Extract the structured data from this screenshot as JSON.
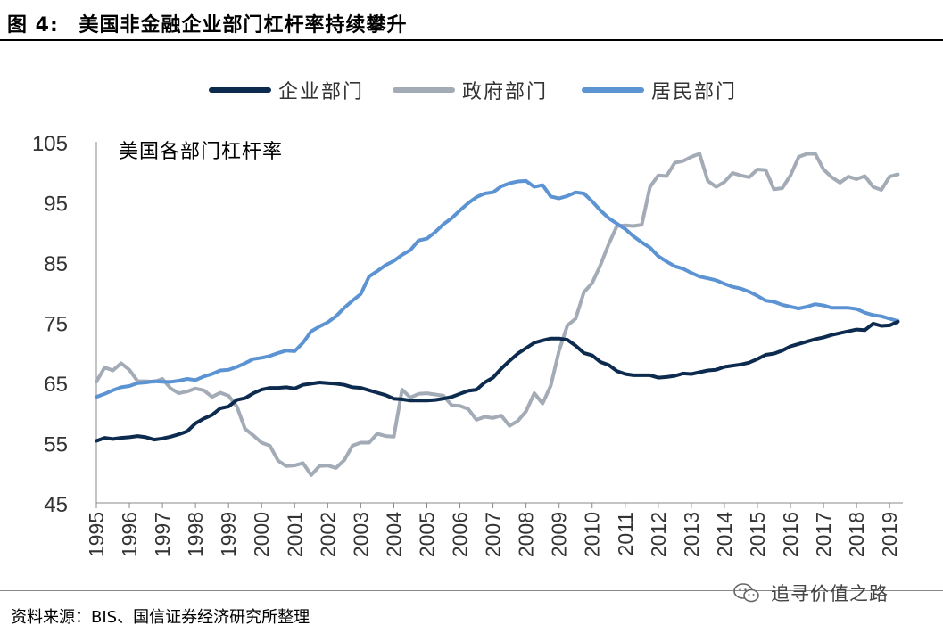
{
  "header": {
    "figure_label": "图 4:",
    "title": "美国非金融企业部门杠杆率持续攀升"
  },
  "footer": {
    "source": "资料来源：BIS、国信证券经济研究所整理",
    "watermark": "追寻价值之路"
  },
  "colors": {
    "enterprise": "#0d2a4f",
    "government": "#a3abb6",
    "household": "#5b93d3"
  },
  "chart_data": {
    "type": "line",
    "annotation": "美国各部门杠杆率",
    "ylim": [
      45,
      105
    ],
    "yticks": [
      45,
      55,
      65,
      75,
      85,
      95,
      105
    ],
    "xlim": [
      1995,
      2019.4
    ],
    "xticks": [
      1995,
      1996,
      1997,
      1998,
      1999,
      2000,
      2001,
      2002,
      2003,
      2004,
      2005,
      2006,
      2007,
      2008,
      2009,
      2010,
      2011,
      2012,
      2013,
      2014,
      2015,
      2016,
      2017,
      2018,
      2019
    ],
    "grid": false,
    "legend_position": "top",
    "series": [
      {
        "name": "企业部门",
        "color": "#0d2a4f",
        "x": [
          1995.0,
          1995.25,
          1995.5,
          1995.75,
          1996.0,
          1996.25,
          1996.5,
          1996.75,
          1997.0,
          1997.25,
          1997.5,
          1997.75,
          1998.0,
          1998.25,
          1998.5,
          1998.75,
          1999.0,
          1999.25,
          1999.5,
          1999.75,
          2000.0,
          2000.25,
          2000.5,
          2000.75,
          2001.0,
          2001.25,
          2001.5,
          2001.75,
          2002.0,
          2002.25,
          2002.5,
          2002.75,
          2003.0,
          2003.25,
          2003.5,
          2003.75,
          2004.0,
          2004.25,
          2004.5,
          2004.75,
          2005.0,
          2005.25,
          2005.5,
          2005.75,
          2006.0,
          2006.25,
          2006.5,
          2006.75,
          2007.0,
          2007.25,
          2007.5,
          2007.75,
          2008.0,
          2008.25,
          2008.5,
          2008.75,
          2009.0,
          2009.25,
          2009.5,
          2009.75,
          2010.0,
          2010.25,
          2010.5,
          2010.75,
          2011.0,
          2011.25,
          2011.5,
          2011.75,
          2012.0,
          2012.25,
          2012.5,
          2012.75,
          2013.0,
          2013.25,
          2013.5,
          2013.75,
          2014.0,
          2014.25,
          2014.5,
          2014.75,
          2015.0,
          2015.25,
          2015.5,
          2015.75,
          2016.0,
          2016.25,
          2016.5,
          2016.75,
          2017.0,
          2017.25,
          2017.5,
          2017.75,
          2018.0,
          2018.25,
          2018.5,
          2018.75,
          2019.0,
          2019.25
        ],
        "y": [
          55.3,
          55.8,
          55.6,
          55.8,
          55.9,
          56.1,
          55.9,
          55.5,
          55.7,
          56.0,
          56.4,
          56.9,
          58.2,
          59.0,
          59.6,
          60.7,
          61.0,
          62.1,
          62.4,
          63.2,
          63.8,
          64.1,
          64.1,
          64.2,
          64.0,
          64.6,
          64.8,
          65.0,
          64.9,
          64.8,
          64.6,
          64.2,
          64.1,
          63.7,
          63.3,
          62.9,
          62.3,
          62.2,
          62.0,
          62.0,
          62.0,
          62.1,
          62.3,
          62.6,
          63.1,
          63.6,
          63.8,
          65.0,
          65.8,
          67.3,
          68.6,
          69.8,
          70.7,
          71.6,
          72.0,
          72.3,
          72.3,
          72.1,
          71.1,
          69.9,
          69.5,
          68.4,
          67.9,
          66.9,
          66.4,
          66.2,
          66.2,
          66.2,
          65.8,
          65.9,
          66.1,
          66.5,
          66.4,
          66.7,
          67.0,
          67.1,
          67.6,
          67.8,
          68.0,
          68.3,
          68.9,
          69.6,
          69.8,
          70.3,
          71.0,
          71.4,
          71.8,
          72.2,
          72.5,
          72.9,
          73.2,
          73.5,
          73.8,
          73.7,
          74.8,
          74.4,
          74.5,
          75.1
        ]
      },
      {
        "name": "政府部门",
        "color": "#a3abb6",
        "x": [
          1995.0,
          1995.25,
          1995.5,
          1995.75,
          1996.0,
          1996.25,
          1996.5,
          1996.75,
          1997.0,
          1997.25,
          1997.5,
          1997.75,
          1998.0,
          1998.25,
          1998.5,
          1998.75,
          1999.0,
          1999.25,
          1999.5,
          1999.75,
          2000.0,
          2000.25,
          2000.5,
          2000.75,
          2001.0,
          2001.25,
          2001.5,
          2001.75,
          2002.0,
          2002.25,
          2002.5,
          2002.75,
          2003.0,
          2003.25,
          2003.5,
          2003.75,
          2004.0,
          2004.25,
          2004.5,
          2004.75,
          2005.0,
          2005.25,
          2005.5,
          2005.75,
          2006.0,
          2006.25,
          2006.5,
          2006.75,
          2007.0,
          2007.25,
          2007.5,
          2007.75,
          2008.0,
          2008.25,
          2008.5,
          2008.75,
          2009.0,
          2009.25,
          2009.5,
          2009.75,
          2010.0,
          2010.25,
          2010.5,
          2010.75,
          2011.0,
          2011.25,
          2011.5,
          2011.75,
          2012.0,
          2012.25,
          2012.5,
          2012.75,
          2013.0,
          2013.25,
          2013.5,
          2013.75,
          2014.0,
          2014.25,
          2014.5,
          2014.75,
          2015.0,
          2015.25,
          2015.5,
          2015.75,
          2016.0,
          2016.25,
          2016.5,
          2016.75,
          2017.0,
          2017.25,
          2017.5,
          2017.75,
          2018.0,
          2018.25,
          2018.5,
          2018.75,
          2019.0,
          2019.25
        ],
        "y": [
          65.1,
          67.5,
          67.0,
          68.2,
          67.1,
          65.2,
          65.2,
          65.1,
          65.6,
          64.0,
          63.2,
          63.5,
          64.0,
          63.7,
          62.6,
          63.3,
          62.8,
          61.0,
          57.3,
          56.2,
          55.0,
          54.5,
          52.0,
          51.1,
          51.2,
          51.6,
          49.6,
          51.1,
          51.2,
          50.8,
          52.1,
          54.5,
          55.0,
          55.0,
          56.5,
          56.1,
          56.0,
          63.8,
          62.5,
          63.1,
          63.2,
          63.0,
          62.8,
          61.2,
          61.1,
          60.6,
          58.8,
          59.3,
          59.1,
          59.5,
          57.8,
          58.6,
          60.2,
          63.2,
          61.5,
          64.5,
          70.3,
          74.5,
          75.6,
          80.0,
          81.5,
          84.5,
          88.0,
          91.0,
          91.1,
          91.0,
          91.2,
          97.5,
          99.4,
          99.3,
          101.5,
          101.8,
          102.5,
          103.0,
          98.5,
          97.5,
          98.3,
          99.8,
          99.4,
          99.1,
          100.4,
          100.3,
          97.1,
          97.3,
          99.4,
          102.5,
          103.0,
          103.0,
          100.4,
          99.1,
          98.2,
          99.2,
          98.8,
          99.3,
          97.5,
          97.0,
          99.2,
          99.6
        ]
      },
      {
        "name": "居民部门",
        "color": "#5b93d3",
        "x": [
          1995.0,
          1995.25,
          1995.5,
          1995.75,
          1996.0,
          1996.25,
          1996.5,
          1996.75,
          1997.0,
          1997.25,
          1997.5,
          1997.75,
          1998.0,
          1998.25,
          1998.5,
          1998.75,
          1999.0,
          1999.25,
          1999.5,
          1999.75,
          2000.0,
          2000.25,
          2000.5,
          2000.75,
          2001.0,
          2001.25,
          2001.5,
          2001.75,
          2002.0,
          2002.25,
          2002.5,
          2002.75,
          2003.0,
          2003.25,
          2003.5,
          2003.75,
          2004.0,
          2004.25,
          2004.5,
          2004.75,
          2005.0,
          2005.25,
          2005.5,
          2005.75,
          2006.0,
          2006.25,
          2006.5,
          2006.75,
          2007.0,
          2007.25,
          2007.5,
          2007.75,
          2008.0,
          2008.25,
          2008.5,
          2008.75,
          2009.0,
          2009.25,
          2009.5,
          2009.75,
          2010.0,
          2010.25,
          2010.5,
          2010.75,
          2011.0,
          2011.25,
          2011.5,
          2011.75,
          2012.0,
          2012.25,
          2012.5,
          2012.75,
          2013.0,
          2013.25,
          2013.5,
          2013.75,
          2014.0,
          2014.25,
          2014.5,
          2014.75,
          2015.0,
          2015.25,
          2015.5,
          2015.75,
          2016.0,
          2016.25,
          2016.5,
          2016.75,
          2017.0,
          2017.25,
          2017.5,
          2017.75,
          2018.0,
          2018.25,
          2018.5,
          2018.75,
          2019.0,
          2019.25
        ],
        "y": [
          62.6,
          63.1,
          63.7,
          64.2,
          64.4,
          64.9,
          65.0,
          65.2,
          65.1,
          65.1,
          65.3,
          65.6,
          65.4,
          66.0,
          66.4,
          67.0,
          67.1,
          67.6,
          68.2,
          68.9,
          69.1,
          69.4,
          69.9,
          70.3,
          70.2,
          71.6,
          73.5,
          74.3,
          75.0,
          76.0,
          77.4,
          78.6,
          79.7,
          82.6,
          83.5,
          84.5,
          85.2,
          86.2,
          87.0,
          88.6,
          88.9,
          90.0,
          91.3,
          92.3,
          93.6,
          94.8,
          95.8,
          96.4,
          96.6,
          97.6,
          98.1,
          98.4,
          98.5,
          97.5,
          97.8,
          95.9,
          95.6,
          96.0,
          96.6,
          96.4,
          95.1,
          93.6,
          92.3,
          91.4,
          90.5,
          89.3,
          88.3,
          87.4,
          86.0,
          85.1,
          84.3,
          83.9,
          83.2,
          82.6,
          82.3,
          82.0,
          81.4,
          80.9,
          80.6,
          80.1,
          79.4,
          78.6,
          78.4,
          77.9,
          77.6,
          77.3,
          77.6,
          78.0,
          77.8,
          77.4,
          77.4,
          77.4,
          77.2,
          76.6,
          76.2,
          76.0,
          75.6,
          75.2
        ]
      }
    ]
  }
}
